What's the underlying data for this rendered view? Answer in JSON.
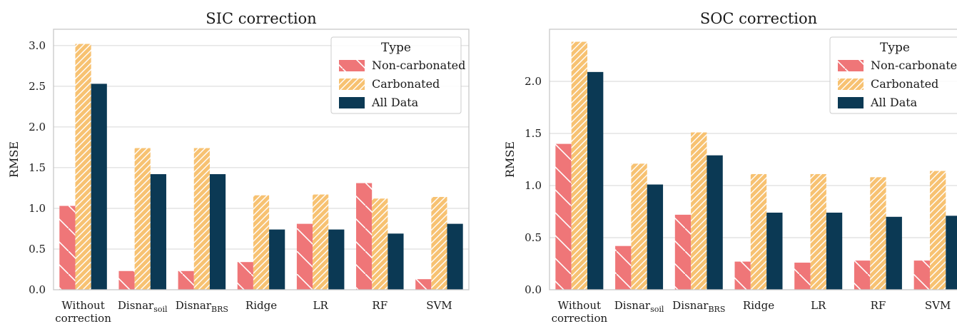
{
  "colors": {
    "non_carbonated": "#ef7678",
    "carbonated": "#f7c272",
    "all_data": "#0b3954",
    "grid": "#d6d6d6",
    "axes": "#c8c8c8"
  },
  "chart_data": [
    {
      "type": "bar",
      "title": "SIC correction",
      "ylabel": "RMSE",
      "xlabel": "",
      "ylim": [
        0,
        3.2
      ],
      "yticks": [
        "0.0",
        "0.5",
        "1.0",
        "1.5",
        "2.0",
        "2.5",
        "3.0"
      ],
      "categories": [
        {
          "line1": "Without",
          "line2": "correction"
        },
        {
          "main": "Disnar",
          "sub": "soil"
        },
        {
          "main": "Disnar",
          "sub": "BRS"
        },
        {
          "main": "Ridge"
        },
        {
          "main": "LR"
        },
        {
          "main": "RF"
        },
        {
          "main": "SVM"
        }
      ],
      "legend": {
        "title": "Type",
        "position": "top-right"
      },
      "grid": true,
      "series": [
        {
          "name": "Non-carbonated",
          "values": [
            1.03,
            0.23,
            0.23,
            0.34,
            0.81,
            1.31,
            0.13
          ]
        },
        {
          "name": "Carbonated",
          "values": [
            3.02,
            1.74,
            1.74,
            1.16,
            1.17,
            1.12,
            1.14
          ]
        },
        {
          "name": "All Data",
          "values": [
            2.53,
            1.42,
            1.42,
            0.74,
            0.74,
            0.69,
            0.81
          ]
        }
      ]
    },
    {
      "type": "bar",
      "title": "SOC correction",
      "ylabel": "RMSE",
      "xlabel": "",
      "ylim": [
        0,
        2.5
      ],
      "yticks": [
        "0.0",
        "0.5",
        "1.0",
        "1.5",
        "2.0"
      ],
      "categories": [
        {
          "line1": "Without",
          "line2": "correction"
        },
        {
          "main": "Disnar",
          "sub": "soil"
        },
        {
          "main": "Disnar",
          "sub": "BRS"
        },
        {
          "main": "Ridge"
        },
        {
          "main": "LR"
        },
        {
          "main": "RF"
        },
        {
          "main": "SVM"
        }
      ],
      "legend": {
        "title": "Type",
        "position": "top-right"
      },
      "grid": true,
      "series": [
        {
          "name": "Non-carbonated",
          "values": [
            1.4,
            0.42,
            0.72,
            0.27,
            0.26,
            0.28,
            0.28
          ]
        },
        {
          "name": "Carbonated",
          "values": [
            2.38,
            1.21,
            1.51,
            1.11,
            1.11,
            1.08,
            1.14
          ]
        },
        {
          "name": "All Data",
          "values": [
            2.09,
            1.01,
            1.29,
            0.74,
            0.74,
            0.7,
            0.71
          ]
        }
      ]
    }
  ]
}
